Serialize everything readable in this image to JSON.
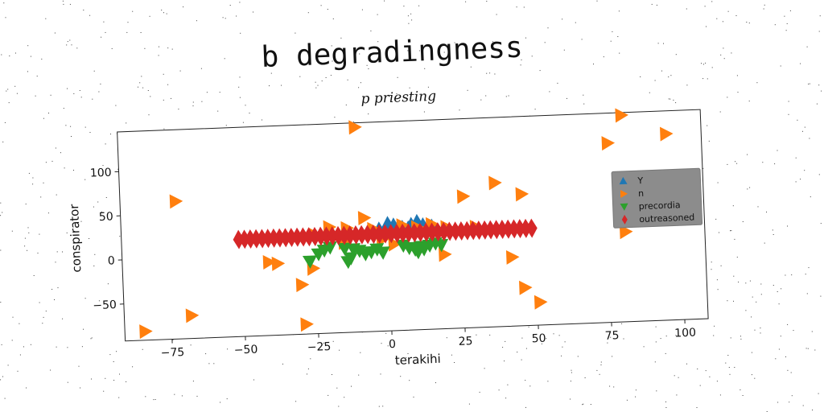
{
  "figure": {
    "suptitle": "b degradingness"
  },
  "chart_data": {
    "type": "scatter",
    "title": "p priesting",
    "xlabel": "terakihi",
    "ylabel": "conspirator",
    "xlim": [
      -91,
      108
    ],
    "ylim": [
      -92,
      145
    ],
    "xticks": [
      -75,
      -50,
      -25,
      0,
      25,
      50,
      75,
      100
    ],
    "yticks": [
      -50,
      0,
      50,
      100
    ],
    "xtick_labels": [
      "−75",
      "−50",
      "−25",
      "0",
      "25",
      "50",
      "75",
      "100"
    ],
    "ytick_labels": [
      "−50",
      "0",
      "50",
      "100"
    ],
    "grid": false,
    "legend_position": "right",
    "series": [
      {
        "name": "Y",
        "marker": "triangle-up",
        "color": "#1f77b4",
        "points": [
          [
            0,
            30
          ],
          [
            2,
            28
          ],
          [
            5,
            25
          ],
          [
            8,
            28
          ],
          [
            10,
            31
          ],
          [
            12,
            27
          ],
          [
            15,
            25
          ],
          [
            -3,
            24
          ],
          [
            3,
            22
          ],
          [
            7,
            24
          ]
        ]
      },
      {
        "name": "n",
        "marker": "triangle-right",
        "color": "#ff7f0e",
        "points": [
          [
            -84,
            -82
          ],
          [
            -68,
            -66
          ],
          [
            -72,
            64
          ],
          [
            -10,
            140
          ],
          [
            -29,
            -81
          ],
          [
            -30,
            -36
          ],
          [
            -26,
            -18
          ],
          [
            -38,
            -11
          ],
          [
            -41,
            -9
          ],
          [
            -8,
            37
          ],
          [
            -20,
            28
          ],
          [
            -14,
            26
          ],
          [
            -5,
            24
          ],
          [
            5,
            27
          ],
          [
            10,
            24
          ],
          [
            15,
            27
          ],
          [
            20,
            23
          ],
          [
            2,
            6
          ],
          [
            -15,
            10
          ],
          [
            26,
            57
          ],
          [
            37,
            71
          ],
          [
            46,
            57
          ],
          [
            19,
            -8
          ],
          [
            42,
            -14
          ],
          [
            46,
            -49
          ],
          [
            51,
            -66
          ],
          [
            76,
            111
          ],
          [
            81,
            142
          ],
          [
            96,
            119
          ],
          [
            81,
            10
          ],
          [
            -25,
            20
          ],
          [
            30,
            22
          ],
          [
            -2,
            12
          ]
        ]
      },
      {
        "name": "precordia",
        "color": "#2ca02c",
        "marker": "triangle-down",
        "points": [
          [
            -27,
            -10
          ],
          [
            -24,
            -2
          ],
          [
            -22,
            2
          ],
          [
            -20,
            5
          ],
          [
            -15,
            3
          ],
          [
            -13,
            -8
          ],
          [
            -12,
            2
          ],
          [
            -10,
            0
          ],
          [
            -8,
            -4
          ],
          [
            -6,
            -2
          ],
          [
            -4,
            1
          ],
          [
            -2,
            -3
          ],
          [
            -14,
            -12
          ],
          [
            5,
            4
          ],
          [
            7,
            1
          ],
          [
            9,
            -1
          ],
          [
            11,
            2
          ],
          [
            12,
            -1
          ],
          [
            14,
            3
          ],
          [
            16,
            5
          ],
          [
            18,
            3
          ],
          [
            10,
            -4
          ]
        ]
      },
      {
        "name": "outreasoned",
        "color": "#d62728",
        "marker": "diamond",
        "points": [
          [
            -51,
            18
          ],
          [
            -49,
            18
          ],
          [
            -47,
            18
          ],
          [
            -45,
            18
          ],
          [
            -43,
            18
          ],
          [
            -41,
            18
          ],
          [
            -39,
            18
          ],
          [
            -37,
            18
          ],
          [
            -35,
            18
          ],
          [
            -33,
            18
          ],
          [
            -31,
            18
          ],
          [
            -29,
            18
          ],
          [
            -27,
            18
          ],
          [
            -25,
            18
          ],
          [
            -23,
            18
          ],
          [
            -21,
            18
          ],
          [
            -19,
            18
          ],
          [
            -17,
            18
          ],
          [
            -15,
            18
          ],
          [
            -13,
            18
          ],
          [
            -11,
            18
          ],
          [
            -9,
            18
          ],
          [
            -7,
            18
          ],
          [
            -5,
            18
          ],
          [
            -3,
            18
          ],
          [
            -1,
            18
          ],
          [
            1,
            18
          ],
          [
            3,
            18
          ],
          [
            5,
            18
          ],
          [
            7,
            18
          ],
          [
            9,
            18
          ],
          [
            11,
            18
          ],
          [
            13,
            18
          ],
          [
            15,
            18
          ],
          [
            17,
            18
          ],
          [
            19,
            18
          ],
          [
            21,
            18
          ],
          [
            23,
            18
          ],
          [
            25,
            18
          ],
          [
            27,
            18
          ],
          [
            29,
            18
          ],
          [
            31,
            18
          ],
          [
            33,
            18
          ],
          [
            35,
            18
          ],
          [
            37,
            18
          ],
          [
            39,
            18
          ],
          [
            41,
            18
          ],
          [
            43,
            18
          ],
          [
            45,
            18
          ],
          [
            47,
            18
          ],
          [
            49,
            18
          ]
        ]
      }
    ]
  }
}
